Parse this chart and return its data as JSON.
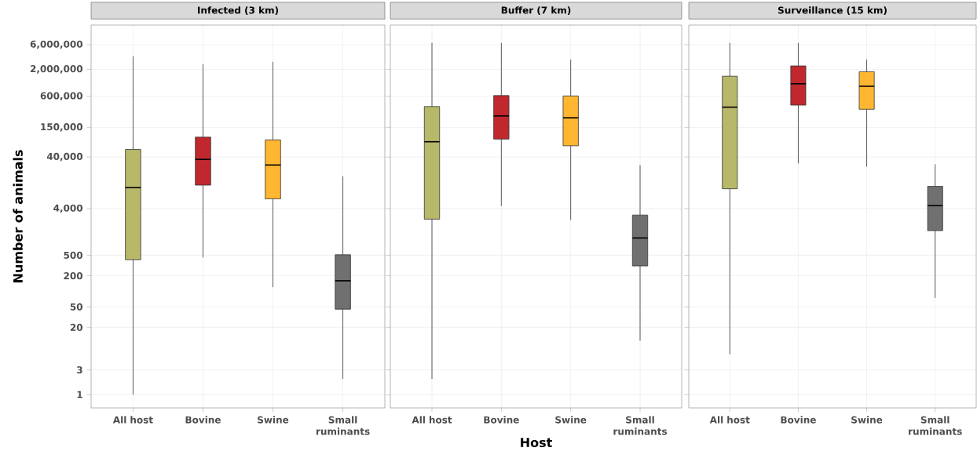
{
  "chart_data": [
    {
      "type": "box",
      "title": "Infected (3 km)",
      "ylabel": "Number of animals",
      "categories": [
        "All host",
        "Bovine",
        "Swine",
        "Small ruminants"
      ],
      "colors": [
        "#b8b86a",
        "#c0282d",
        "#ffb732",
        "#707070"
      ],
      "log": true,
      "grid": true,
      "ylim": [
        0.55,
        14400000
      ],
      "yticks": [
        1,
        3,
        20,
        50,
        200,
        500,
        {
          "value": 4000,
          "label": "4,000"
        },
        {
          "value": 40000,
          "label": "40,000"
        },
        {
          "value": 150000,
          "label": "150,000"
        },
        {
          "value": 600000,
          "label": "600,000"
        },
        {
          "value": 2000000,
          "label": "2,000,000"
        },
        {
          "value": 6000000,
          "label": "6,000,000"
        }
      ],
      "boxes": [
        {
          "low": 1,
          "q1": 410,
          "median": 10200,
          "q3": 56000,
          "high": 3600000
        },
        {
          "low": 450,
          "q1": 11400,
          "median": 36000,
          "q3": 97000,
          "high": 2500000
        },
        {
          "low": 120,
          "q1": 6200,
          "median": 28000,
          "q3": 86000,
          "high": 2800000
        },
        {
          "low": 2,
          "q1": 45,
          "median": 160,
          "q3": 510,
          "high": 17000
        }
      ]
    },
    {
      "type": "box",
      "title": "Buffer (7 km)",
      "xlabel": "Host",
      "categories": [
        "All host",
        "Bovine",
        "Swine",
        "Small ruminants"
      ],
      "colors": [
        "#b8b86a",
        "#c0282d",
        "#ffb732",
        "#707070"
      ],
      "log": true,
      "grid": true,
      "tick_labels": "x",
      "ylim": [
        0.55,
        14400000
      ],
      "yticks": [
        {
          "value": 1,
          "label": null
        },
        {
          "value": 3,
          "label": null
        },
        {
          "value": 20,
          "label": null
        },
        {
          "value": 50,
          "label": null
        },
        {
          "value": 200,
          "label": null
        },
        {
          "value": 500,
          "label": null
        },
        {
          "value": 4000,
          "label": null
        },
        {
          "value": 40000,
          "label": null
        },
        {
          "value": 150000,
          "label": null
        },
        {
          "value": 600000,
          "label": null
        },
        {
          "value": 2000000,
          "label": null
        },
        {
          "value": 6000000,
          "label": null
        }
      ],
      "boxes": [
        {
          "low": 2,
          "q1": 2500,
          "median": 79000,
          "q3": 380000,
          "high": 6500000
        },
        {
          "low": 4500,
          "q1": 89000,
          "median": 250000,
          "q3": 620000,
          "high": 6500000
        },
        {
          "low": 2400,
          "q1": 66000,
          "median": 230000,
          "q3": 610000,
          "high": 3100000
        },
        {
          "low": 11,
          "q1": 310,
          "median": 1080,
          "q3": 3000,
          "high": 28000
        }
      ]
    },
    {
      "type": "box",
      "title": "Surveillance (15 km)",
      "categories": [
        "All host",
        "Bovine",
        "Swine",
        "Small ruminants"
      ],
      "colors": [
        "#b8b86a",
        "#c0282d",
        "#ffb732",
        "#707070"
      ],
      "log": true,
      "grid": true,
      "tick_labels": "x",
      "ylim": [
        0.55,
        14400000
      ],
      "yticks": [
        {
          "value": 1,
          "label": null
        },
        {
          "value": 3,
          "label": null
        },
        {
          "value": 20,
          "label": null
        },
        {
          "value": 50,
          "label": null
        },
        {
          "value": 200,
          "label": null
        },
        {
          "value": 500,
          "label": null
        },
        {
          "value": 4000,
          "label": null
        },
        {
          "value": 40000,
          "label": null
        },
        {
          "value": 150000,
          "label": null
        },
        {
          "value": 600000,
          "label": null
        },
        {
          "value": 2000000,
          "label": null
        },
        {
          "value": 6000000,
          "label": null
        }
      ],
      "boxes": [
        {
          "low": 6,
          "q1": 9700,
          "median": 370000,
          "q3": 1470000,
          "high": 6500000
        },
        {
          "low": 30000,
          "q1": 405000,
          "median": 1050000,
          "q3": 2330000,
          "high": 6500000
        },
        {
          "low": 26000,
          "q1": 337000,
          "median": 940000,
          "q3": 1800000,
          "high": 3100000
        },
        {
          "low": 74,
          "q1": 1500,
          "median": 4600,
          "q3": 10800,
          "high": 29000
        }
      ]
    }
  ]
}
